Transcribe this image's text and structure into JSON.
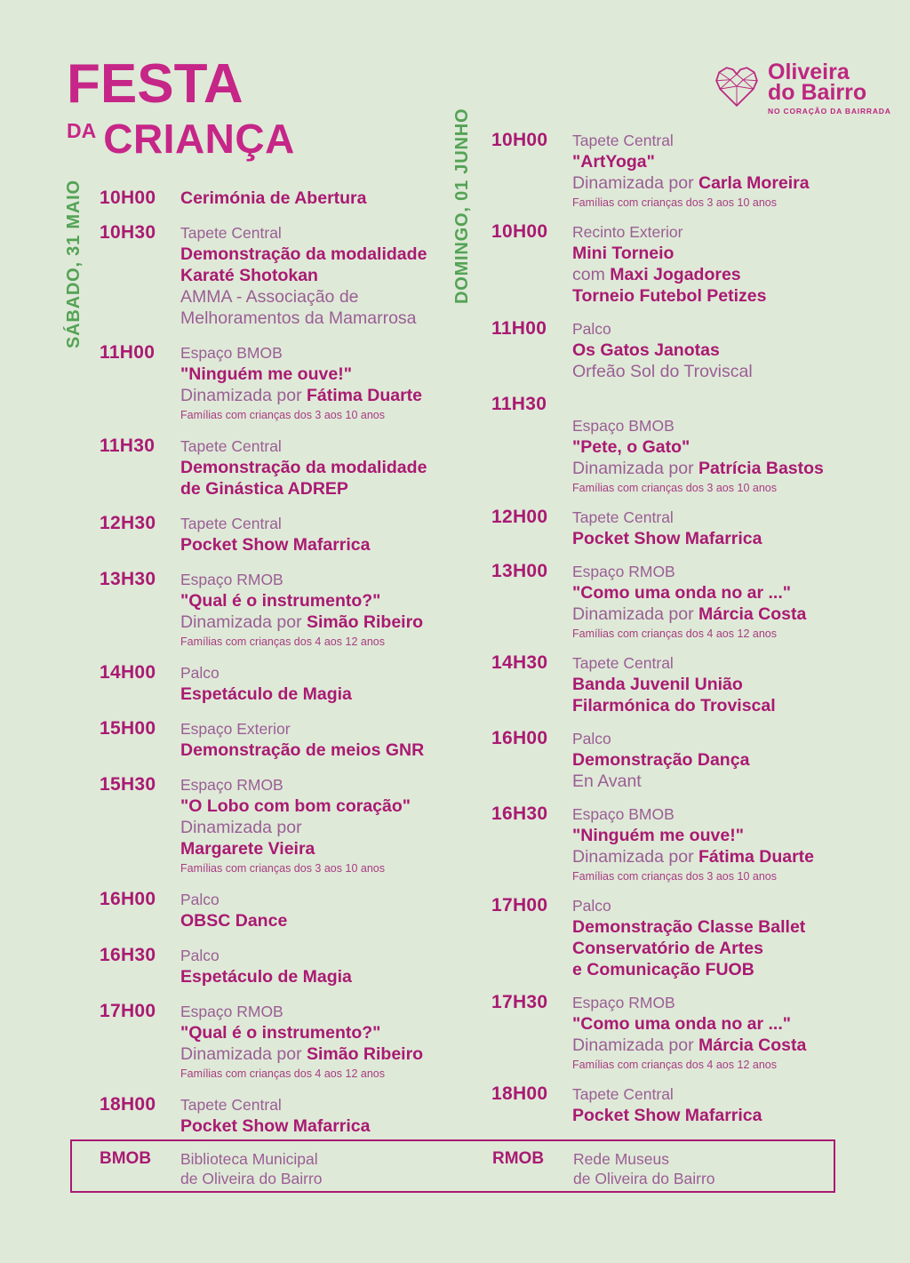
{
  "header": {
    "title_line1": "FESTA",
    "title_da": "DA",
    "title_crianca": "CRIANÇA"
  },
  "logo": {
    "heart_icon": "lowpoly-heart-icon",
    "name_line1": "Oliveira",
    "name_line2": "do Bairro",
    "tagline": "NO CORAÇÃO DA BAIRRADA"
  },
  "colors": {
    "background": "#dfe9d8",
    "title_pink": "#c62687",
    "magenta_bold": "#a91a72",
    "mauve_light": "#9a5e94",
    "small_text": "#a83c82",
    "green_day": "#53a355",
    "logo_magenta": "#bc2780"
  },
  "days": [
    {
      "label": "SÁBADO, 31 MAIO",
      "events": [
        {
          "time": "10H00",
          "lines": [
            {
              "style": "normal",
              "parts": [
                [
                  "b",
                  "Cerimónia de Abertura"
                ]
              ]
            }
          ]
        },
        {
          "time": "10H30",
          "lines": [
            {
              "style": "venue",
              "parts": [
                [
                  "l",
                  "Tapete Central"
                ]
              ]
            },
            {
              "style": "normal",
              "parts": [
                [
                  "b",
                  "Demonstração da modalidade"
                ]
              ]
            },
            {
              "style": "normal",
              "parts": [
                [
                  "b",
                  "Karaté Shotokan"
                ]
              ]
            },
            {
              "style": "normal",
              "parts": [
                [
                  "l",
                  "AMMA - Associação de"
                ]
              ]
            },
            {
              "style": "normal",
              "parts": [
                [
                  "l",
                  "Melhoramentos da Mamarrosa"
                ]
              ]
            }
          ]
        },
        {
          "time": "11H00",
          "lines": [
            {
              "style": "venue",
              "parts": [
                [
                  "l",
                  "Espaço BMOB"
                ]
              ]
            },
            {
              "style": "normal",
              "parts": [
                [
                  "b",
                  "\"Ninguém me ouve!\""
                ]
              ]
            },
            {
              "style": "normal",
              "parts": [
                [
                  "l",
                  "Dinamizada por "
                ],
                [
                  "b",
                  "Fátima Duarte"
                ]
              ]
            },
            {
              "style": "small",
              "parts": [
                [
                  "l",
                  "Famílias com crianças dos 3 aos 10 anos"
                ]
              ]
            }
          ]
        },
        {
          "time": "11H30",
          "lines": [
            {
              "style": "venue",
              "parts": [
                [
                  "l",
                  "Tapete Central"
                ]
              ]
            },
            {
              "style": "normal",
              "parts": [
                [
                  "b",
                  "Demonstração da modalidade"
                ]
              ]
            },
            {
              "style": "normal",
              "parts": [
                [
                  "b",
                  "de Ginástica ADREP"
                ]
              ]
            }
          ]
        },
        {
          "time": "12H30",
          "lines": [
            {
              "style": "venue",
              "parts": [
                [
                  "l",
                  "Tapete Central"
                ]
              ]
            },
            {
              "style": "normal",
              "parts": [
                [
                  "b",
                  "Pocket Show Mafarrica"
                ]
              ]
            }
          ]
        },
        {
          "time": "13H30",
          "lines": [
            {
              "style": "venue",
              "parts": [
                [
                  "l",
                  "Espaço RMOB"
                ]
              ]
            },
            {
              "style": "normal",
              "parts": [
                [
                  "b",
                  "\"Qual é o instrumento?\""
                ]
              ]
            },
            {
              "style": "normal",
              "parts": [
                [
                  "l",
                  "Dinamizada por "
                ],
                [
                  "b",
                  "Simão Ribeiro"
                ]
              ]
            },
            {
              "style": "small",
              "parts": [
                [
                  "l",
                  "Famílias com crianças dos 4 aos 12 anos"
                ]
              ]
            }
          ]
        },
        {
          "time": "14H00",
          "lines": [
            {
              "style": "venue",
              "parts": [
                [
                  "l",
                  "Palco"
                ]
              ]
            },
            {
              "style": "normal",
              "parts": [
                [
                  "b",
                  "Espetáculo de Magia"
                ]
              ]
            }
          ]
        },
        {
          "time": "15H00",
          "lines": [
            {
              "style": "venue",
              "parts": [
                [
                  "l",
                  "Espaço Exterior"
                ]
              ]
            },
            {
              "style": "normal",
              "parts": [
                [
                  "b",
                  "Demonstração de meios GNR"
                ]
              ]
            }
          ]
        },
        {
          "time": "15H30",
          "lines": [
            {
              "style": "venue",
              "parts": [
                [
                  "l",
                  "Espaço RMOB"
                ]
              ]
            },
            {
              "style": "normal",
              "parts": [
                [
                  "b",
                  "\"O Lobo com bom coração\""
                ]
              ]
            },
            {
              "style": "normal",
              "parts": [
                [
                  "l",
                  "Dinamizada por"
                ]
              ]
            },
            {
              "style": "normal",
              "parts": [
                [
                  "b",
                  "Margarete Vieira"
                ]
              ]
            },
            {
              "style": "small",
              "parts": [
                [
                  "l",
                  "Famílias com crianças dos 3 aos 10 anos"
                ]
              ]
            }
          ]
        },
        {
          "time": "16H00",
          "lines": [
            {
              "style": "venue",
              "parts": [
                [
                  "l",
                  "Palco"
                ]
              ]
            },
            {
              "style": "normal",
              "parts": [
                [
                  "b",
                  "OBSC Dance"
                ]
              ]
            }
          ]
        },
        {
          "time": "16H30",
          "lines": [
            {
              "style": "venue",
              "parts": [
                [
                  "l",
                  "Palco"
                ]
              ]
            },
            {
              "style": "normal",
              "parts": [
                [
                  "b",
                  "Espetáculo de Magia"
                ]
              ]
            }
          ]
        },
        {
          "time": "17H00",
          "lines": [
            {
              "style": "venue",
              "parts": [
                [
                  "l",
                  "Espaço RMOB"
                ]
              ]
            },
            {
              "style": "normal",
              "parts": [
                [
                  "b",
                  "\"Qual é o instrumento?\""
                ]
              ]
            },
            {
              "style": "normal",
              "parts": [
                [
                  "l",
                  "Dinamizada por "
                ],
                [
                  "b",
                  "Simão Ribeiro"
                ]
              ]
            },
            {
              "style": "small",
              "parts": [
                [
                  "l",
                  "Famílias com crianças dos 4 aos 12 anos"
                ]
              ]
            }
          ]
        },
        {
          "time": "18H00",
          "lines": [
            {
              "style": "venue",
              "parts": [
                [
                  "l",
                  "Tapete Central"
                ]
              ]
            },
            {
              "style": "normal",
              "parts": [
                [
                  "b",
                  "Pocket Show Mafarrica"
                ]
              ]
            }
          ]
        }
      ]
    },
    {
      "label": "DOMINGO, 01 JUNHO",
      "events": [
        {
          "time": "10H00",
          "lines": [
            {
              "style": "venue",
              "parts": [
                [
                  "l",
                  "Tapete Central"
                ]
              ]
            },
            {
              "style": "normal",
              "parts": [
                [
                  "b",
                  "\"ArtYoga\""
                ]
              ]
            },
            {
              "style": "normal",
              "parts": [
                [
                  "l",
                  "Dinamizada por "
                ],
                [
                  "b",
                  "Carla Moreira"
                ]
              ]
            },
            {
              "style": "small",
              "parts": [
                [
                  "l",
                  "Famílias com crianças dos 3 aos 10 anos"
                ]
              ]
            }
          ]
        },
        {
          "time": "10H00",
          "lines": [
            {
              "style": "venue",
              "parts": [
                [
                  "l",
                  "Recinto Exterior"
                ]
              ]
            },
            {
              "style": "normal",
              "parts": [
                [
                  "b",
                  "Mini Torneio"
                ]
              ]
            },
            {
              "style": "normal",
              "parts": [
                [
                  "l",
                  "com "
                ],
                [
                  "b",
                  "Maxi Jogadores"
                ]
              ]
            },
            {
              "style": "normal",
              "parts": [
                [
                  "b",
                  "Torneio Futebol Petizes"
                ]
              ]
            }
          ]
        },
        {
          "time": "11H00",
          "lines": [
            {
              "style": "venue",
              "parts": [
                [
                  "l",
                  "Palco"
                ]
              ]
            },
            {
              "style": "normal",
              "parts": [
                [
                  "b",
                  "Os Gatos Janotas"
                ]
              ]
            },
            {
              "style": "normal",
              "parts": [
                [
                  "l",
                  "Orfeão Sol do Troviscal"
                ]
              ]
            }
          ]
        },
        {
          "time": "11H30",
          "content_offset": true,
          "lines": [
            {
              "style": "venue",
              "parts": [
                [
                  "l",
                  "Espaço BMOB"
                ]
              ]
            },
            {
              "style": "normal",
              "parts": [
                [
                  "b",
                  "\"Pete, o Gato\""
                ]
              ]
            },
            {
              "style": "normal",
              "parts": [
                [
                  "l",
                  "Dinamizada por "
                ],
                [
                  "b",
                  "Patrícia Bastos"
                ]
              ]
            },
            {
              "style": "small",
              "parts": [
                [
                  "l",
                  "Famílias com crianças dos 3 aos 10 anos"
                ]
              ]
            }
          ]
        },
        {
          "time": "12H00",
          "lines": [
            {
              "style": "venue",
              "parts": [
                [
                  "l",
                  "Tapete Central"
                ]
              ]
            },
            {
              "style": "normal",
              "parts": [
                [
                  "b",
                  "Pocket Show Mafarrica"
                ]
              ]
            }
          ]
        },
        {
          "time": "13H00",
          "lines": [
            {
              "style": "venue",
              "parts": [
                [
                  "l",
                  "Espaço RMOB"
                ]
              ]
            },
            {
              "style": "normal",
              "parts": [
                [
                  "b",
                  "\"Como uma onda no ar ...\""
                ]
              ]
            },
            {
              "style": "normal",
              "parts": [
                [
                  "l",
                  "Dinamizada por "
                ],
                [
                  "b",
                  "Márcia Costa"
                ]
              ]
            },
            {
              "style": "small",
              "parts": [
                [
                  "l",
                  "Famílias com crianças dos 4 aos 12 anos"
                ]
              ]
            }
          ]
        },
        {
          "time": "14H30",
          "lines": [
            {
              "style": "venue",
              "parts": [
                [
                  "l",
                  "Tapete Central"
                ]
              ]
            },
            {
              "style": "normal",
              "parts": [
                [
                  "b",
                  "Banda Juvenil União"
                ]
              ]
            },
            {
              "style": "normal",
              "parts": [
                [
                  "b",
                  "Filarmónica do Troviscal"
                ]
              ]
            }
          ]
        },
        {
          "time": "16H00",
          "lines": [
            {
              "style": "venue",
              "parts": [
                [
                  "l",
                  "Palco"
                ]
              ]
            },
            {
              "style": "normal",
              "parts": [
                [
                  "b",
                  "Demonstração Dança"
                ]
              ]
            },
            {
              "style": "normal",
              "parts": [
                [
                  "l",
                  "En Avant"
                ]
              ]
            }
          ]
        },
        {
          "time": "16H30",
          "lines": [
            {
              "style": "venue",
              "parts": [
                [
                  "l",
                  "Espaço BMOB"
                ]
              ]
            },
            {
              "style": "normal",
              "parts": [
                [
                  "b",
                  "\"Ninguém me ouve!\""
                ]
              ]
            },
            {
              "style": "normal",
              "parts": [
                [
                  "l",
                  "Dinamizada por "
                ],
                [
                  "b",
                  "Fátima Duarte"
                ]
              ]
            },
            {
              "style": "small",
              "parts": [
                [
                  "l",
                  "Famílias com crianças dos 3 aos 10 anos"
                ]
              ]
            }
          ]
        },
        {
          "time": "17H00",
          "lines": [
            {
              "style": "venue",
              "parts": [
                [
                  "l",
                  "Palco"
                ]
              ]
            },
            {
              "style": "normal",
              "parts": [
                [
                  "b",
                  "Demonstração Classe Ballet"
                ]
              ]
            },
            {
              "style": "normal",
              "parts": [
                [
                  "b",
                  "Conservatório de Artes"
                ]
              ]
            },
            {
              "style": "normal",
              "parts": [
                [
                  "b",
                  "e Comunicação FUOB"
                ]
              ]
            }
          ]
        },
        {
          "time": "17H30",
          "lines": [
            {
              "style": "venue",
              "parts": [
                [
                  "l",
                  "Espaço RMOB"
                ]
              ]
            },
            {
              "style": "normal",
              "parts": [
                [
                  "b",
                  "\"Como uma onda no ar ...\""
                ]
              ]
            },
            {
              "style": "normal",
              "parts": [
                [
                  "l",
                  "Dinamizada por "
                ],
                [
                  "b",
                  "Márcia Costa"
                ]
              ]
            },
            {
              "style": "small",
              "parts": [
                [
                  "l",
                  "Famílias com crianças dos 4 aos 12 anos"
                ]
              ]
            }
          ]
        },
        {
          "time": "18H00",
          "lines": [
            {
              "style": "venue",
              "parts": [
                [
                  "l",
                  "Tapete Central"
                ]
              ]
            },
            {
              "style": "normal",
              "parts": [
                [
                  "b",
                  "Pocket Show Mafarrica"
                ]
              ]
            }
          ]
        }
      ]
    }
  ],
  "legend": [
    {
      "abbr": "BMOB",
      "lines": [
        "Biblioteca Municipal",
        "de Oliveira do Bairro"
      ]
    },
    {
      "abbr": "RMOB",
      "lines": [
        "Rede Museus",
        "de Oliveira do Bairro"
      ]
    }
  ]
}
